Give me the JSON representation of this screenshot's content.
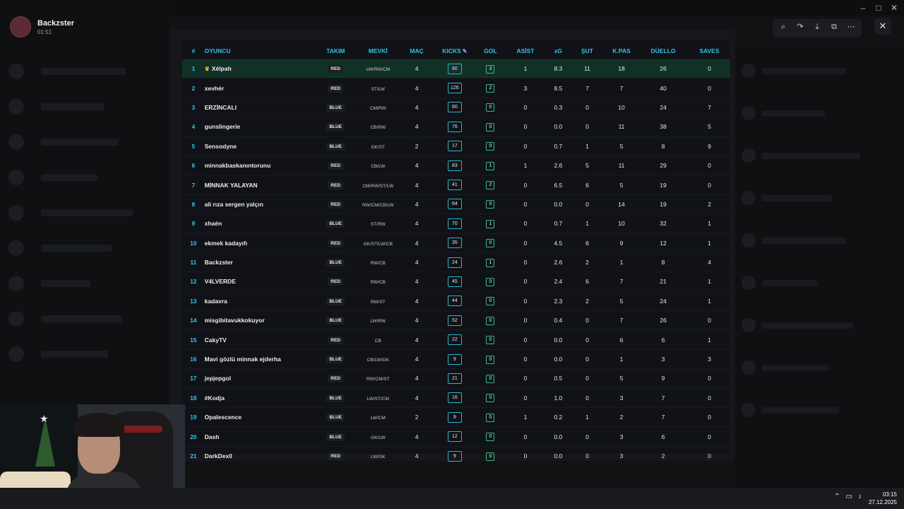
{
  "uploader": {
    "name": "Backzster",
    "time": "01:51"
  },
  "table": {
    "headers": {
      "rank": "#",
      "player": "OYUNCU",
      "team": "TAKIM",
      "pos": "MEVKİ",
      "mac": "MAÇ",
      "kicks": "KICKS",
      "gol": "GOL",
      "asist": "ASİST",
      "xg": "xG",
      "sut": "ŞUT",
      "kpas": "K.PAS",
      "duello": "DÜELLO",
      "saves": "SAVES"
    },
    "rows": [
      {
        "rank": "1",
        "player": "Xélpah",
        "team": "RED",
        "pos": "LW/RW/CM",
        "mac": "4",
        "kicks": "60",
        "gol": "3",
        "asist": "1",
        "xg": "8.3",
        "sut": "11",
        "kpas": "18",
        "duello": "26",
        "saves": "0"
      },
      {
        "rank": "2",
        "player": "xevhér",
        "team": "RED",
        "pos": "ST/LW",
        "mac": "4",
        "kicks": "126",
        "gol": "2",
        "asist": "3",
        "xg": "8.5",
        "sut": "7",
        "kpas": "7",
        "duello": "40",
        "saves": "0"
      },
      {
        "rank": "3",
        "player": "ERZİNCALI",
        "team": "BLUE",
        "pos": "CM/RW",
        "mac": "4",
        "kicks": "60",
        "gol": "0",
        "asist": "0",
        "xg": "0.3",
        "sut": "0",
        "kpas": "10",
        "duello": "24",
        "saves": "7"
      },
      {
        "rank": "4",
        "player": "gunslingerie",
        "team": "BLUE",
        "pos": "CB/RW",
        "mac": "4",
        "kicks": "76",
        "gol": "0",
        "asist": "0",
        "xg": "0.0",
        "sut": "0",
        "kpas": "11",
        "duello": "38",
        "saves": "5"
      },
      {
        "rank": "5",
        "player": "Sensodyne",
        "team": "BLUE",
        "pos": "GK/ST",
        "mac": "2",
        "kicks": "17",
        "gol": "0",
        "asist": "0",
        "xg": "0.7",
        "sut": "1",
        "kpas": "5",
        "duello": "8",
        "saves": "9"
      },
      {
        "rank": "6",
        "player": "minnakbaskanıntorunu",
        "team": "RED",
        "pos": "CB/LW",
        "mac": "4",
        "kicks": "83",
        "gol": "1",
        "asist": "1",
        "xg": "2.6",
        "sut": "5",
        "kpas": "11",
        "duello": "29",
        "saves": "0"
      },
      {
        "rank": "7",
        "player": "MİNNAK YALAYAN",
        "team": "RED",
        "pos": "CM/RW/ST/LW",
        "mac": "4",
        "kicks": "41",
        "gol": "2",
        "asist": "0",
        "xg": "6.5",
        "sut": "6",
        "kpas": "5",
        "duello": "19",
        "saves": "0"
      },
      {
        "rank": "8",
        "player": "ali rıza sergen yalçın",
        "team": "RED",
        "pos": "RW/CM/CB/LW",
        "mac": "4",
        "kicks": "64",
        "gol": "0",
        "asist": "0",
        "xg": "0.0",
        "sut": "0",
        "kpas": "14",
        "duello": "19",
        "saves": "2"
      },
      {
        "rank": "9",
        "player": "xhaèn",
        "team": "BLUE",
        "pos": "ST/RW",
        "mac": "4",
        "kicks": "70",
        "gol": "1",
        "asist": "0",
        "xg": "0.7",
        "sut": "1",
        "kpas": "10",
        "duello": "32",
        "saves": "1"
      },
      {
        "rank": "10",
        "player": "ekmek kadayıfı",
        "team": "RED",
        "pos": "GK/ST/LW/CB",
        "mac": "4",
        "kicks": "35",
        "gol": "0",
        "asist": "0",
        "xg": "4.5",
        "sut": "6",
        "kpas": "9",
        "duello": "12",
        "saves": "1"
      },
      {
        "rank": "11",
        "player": "Backzster",
        "team": "BLUE",
        "pos": "RW/CB",
        "mac": "4",
        "kicks": "24",
        "gol": "1",
        "asist": "0",
        "xg": "2.6",
        "sut": "2",
        "kpas": "1",
        "duello": "8",
        "saves": "4"
      },
      {
        "rank": "12",
        "player": "V4LVERDE",
        "team": "RED",
        "pos": "RW/CB",
        "mac": "4",
        "kicks": "45",
        "gol": "0",
        "asist": "0",
        "xg": "2.4",
        "sut": "6",
        "kpas": "7",
        "duello": "21",
        "saves": "1"
      },
      {
        "rank": "13",
        "player": "kadavra",
        "team": "BLUE",
        "pos": "RW/ST",
        "mac": "4",
        "kicks": "44",
        "gol": "0",
        "asist": "0",
        "xg": "2.3",
        "sut": "2",
        "kpas": "5",
        "duello": "24",
        "saves": "1"
      },
      {
        "rank": "14",
        "player": "misgibitavukkokuyor",
        "team": "BLUE",
        "pos": "LW/RW",
        "mac": "4",
        "kicks": "52",
        "gol": "0",
        "asist": "0",
        "xg": "0.4",
        "sut": "0",
        "kpas": "7",
        "duello": "26",
        "saves": "0"
      },
      {
        "rank": "15",
        "player": "CakyTV",
        "team": "RED",
        "pos": "CB",
        "mac": "4",
        "kicks": "22",
        "gol": "0",
        "asist": "0",
        "xg": "0.0",
        "sut": "0",
        "kpas": "6",
        "duello": "6",
        "saves": "1"
      },
      {
        "rank": "16",
        "player": "Mavi gözlü minnak ejderha",
        "team": "BLUE",
        "pos": "CB/LW/GK",
        "mac": "4",
        "kicks": "9",
        "gol": "0",
        "asist": "0",
        "xg": "0.0",
        "sut": "0",
        "kpas": "1",
        "duello": "3",
        "saves": "3"
      },
      {
        "rank": "17",
        "player": "jepjepgol",
        "team": "RED",
        "pos": "RW/CM/ST",
        "mac": "4",
        "kicks": "21",
        "gol": "0",
        "asist": "0",
        "xg": "0.5",
        "sut": "0",
        "kpas": "5",
        "duello": "9",
        "saves": "0"
      },
      {
        "rank": "18",
        "player": "#Kodja",
        "team": "BLUE",
        "pos": "LW/ST/CM",
        "mac": "4",
        "kicks": "16",
        "gol": "0",
        "asist": "0",
        "xg": "1.0",
        "sut": "0",
        "kpas": "3",
        "duello": "7",
        "saves": "0"
      },
      {
        "rank": "19",
        "player": "Opalescence",
        "team": "BLUE",
        "pos": "LW/CM",
        "mac": "2",
        "kicks": "9",
        "gol": "0",
        "asist": "1",
        "xg": "0.2",
        "sut": "1",
        "kpas": "2",
        "duello": "7",
        "saves": "0"
      },
      {
        "rank": "20",
        "player": "Dash",
        "team": "BLUE",
        "pos": "GK/LW",
        "mac": "4",
        "kicks": "12",
        "gol": "0",
        "asist": "0",
        "xg": "0.0",
        "sut": "0",
        "kpas": "3",
        "duello": "6",
        "saves": "0"
      },
      {
        "rank": "21",
        "player": "DarkDex0",
        "team": "RED",
        "pos": "LW/GK",
        "mac": "4",
        "kicks": "9",
        "gol": "0",
        "asist": "0",
        "xg": "0.0",
        "sut": "0",
        "kpas": "3",
        "duello": "2",
        "saves": "0"
      }
    ]
  },
  "clock": {
    "time": "03:15",
    "date": "27.12.2025"
  },
  "icons": {
    "zoom": "zoom-icon",
    "share": "share-icon",
    "download": "download-icon",
    "open": "open-external-icon",
    "more": "more-icon",
    "close": "close-icon",
    "crown": "crown-icon",
    "wand": "wand-icon"
  },
  "colors": {
    "accent": "#38c2e6",
    "highlight_row": "#123126",
    "goal_border": "#30c080",
    "kicks_border": "#2ab6c8"
  }
}
